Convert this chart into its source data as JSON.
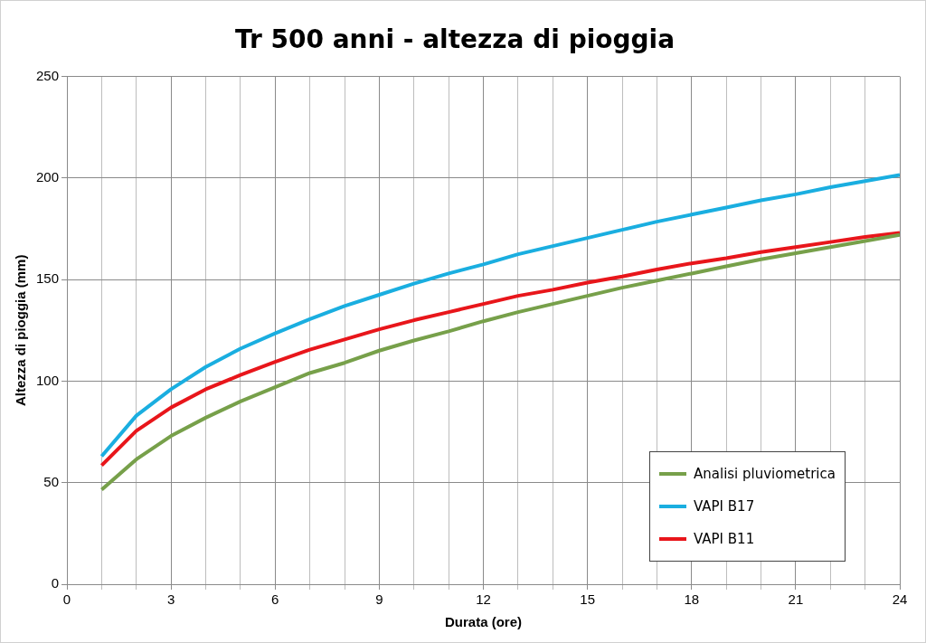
{
  "chart_data": {
    "type": "line",
    "title": "Tr 500 anni - altezza di pioggia",
    "xlabel": "Durata (ore)",
    "ylabel": "Altezza di pioggia (mm)",
    "x": [
      1,
      2,
      3,
      4,
      5,
      6,
      7,
      8,
      9,
      10,
      11,
      12,
      13,
      14,
      15,
      16,
      17,
      18,
      19,
      20,
      21,
      22,
      23,
      24
    ],
    "series": [
      {
        "name": "Analisi pluviometrica",
        "color": "#77a04a",
        "values": [
          46.5,
          61.5,
          73,
          82,
          90,
          97,
          104,
          109,
          115,
          120,
          124.5,
          129.5,
          134,
          138,
          142,
          146,
          149.5,
          153,
          156.5,
          160,
          163,
          166,
          169,
          172
        ]
      },
      {
        "name": "VAPI B17",
        "color": "#1aaee0",
        "values": [
          63,
          83,
          96,
          107,
          116,
          123.5,
          130.5,
          137,
          142.5,
          148,
          153,
          157.5,
          162.5,
          166.5,
          170.5,
          174.5,
          178.5,
          182,
          185.5,
          189,
          192,
          195.5,
          198.5,
          201.5
        ]
      },
      {
        "name": "VAPI B11",
        "color": "#e8161b",
        "values": [
          58.5,
          75.5,
          87,
          96,
          103,
          109.5,
          115.5,
          120.5,
          125.5,
          130,
          134,
          138,
          142,
          145,
          148.5,
          151.5,
          155,
          158,
          160.5,
          163.5,
          166,
          168.5,
          171,
          173
        ]
      }
    ],
    "xlim": [
      0,
      24
    ],
    "xticks": [
      0,
      {
        "value": 1,
        "label": null
      },
      {
        "value": 2,
        "label": null
      },
      3,
      {
        "value": 4,
        "label": null
      },
      {
        "value": 5,
        "label": null
      },
      6,
      {
        "value": 7,
        "label": null
      },
      {
        "value": 8,
        "label": null
      },
      9,
      {
        "value": 10,
        "label": null
      },
      {
        "value": 11,
        "label": null
      },
      12,
      {
        "value": 13,
        "label": null
      },
      {
        "value": 14,
        "label": null
      },
      15,
      {
        "value": 16,
        "label": null
      },
      {
        "value": 17,
        "label": null
      },
      18,
      {
        "value": 19,
        "label": null
      },
      {
        "value": 20,
        "label": null
      },
      21,
      {
        "value": 22,
        "label": null
      },
      {
        "value": 23,
        "label": null
      },
      24
    ],
    "ylim": [
      0,
      250
    ],
    "yticks": [
      0,
      50,
      100,
      150,
      200,
      250
    ],
    "grid": true,
    "legend": "bottom right",
    "marker": "none",
    "line_style": "solid"
  }
}
